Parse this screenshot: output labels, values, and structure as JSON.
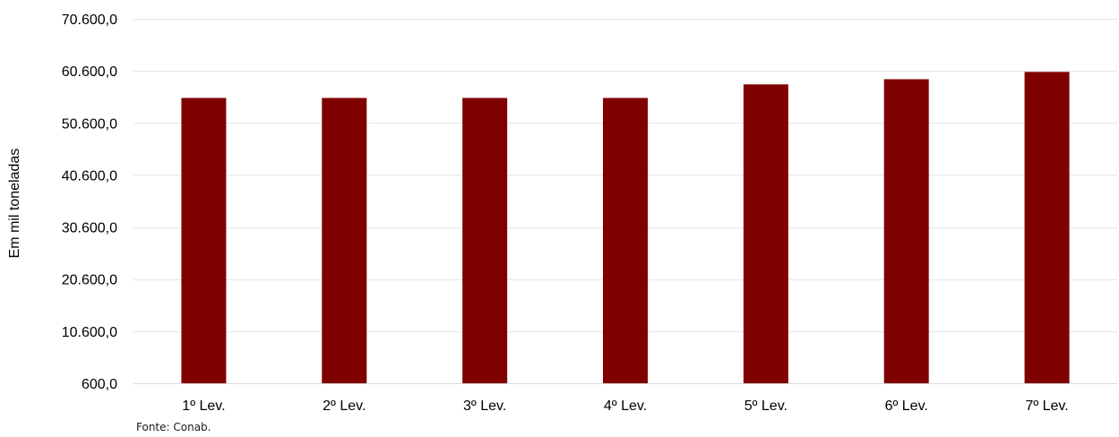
{
  "chart_data": {
    "type": "bar",
    "categories": [
      "1º Lev.",
      "2º Lev.",
      "3º Lev.",
      "4º Lev.",
      "5º Lev.",
      "6º Lev.",
      "7º Lev."
    ],
    "values": [
      55400,
      55400,
      55400,
      55400,
      58000,
      59000,
      60400
    ],
    "ylabel": "Em mil toneladas",
    "xlabel": "",
    "ylim": [
      600,
      70600
    ],
    "yticks": [
      600,
      10600,
      20600,
      30600,
      40600,
      50600,
      60600,
      70600
    ],
    "ytick_labels": [
      "600,0",
      "10.600,0",
      "20.600,0",
      "30.600,0",
      "40.600,0",
      "50.600,0",
      "60.600,0",
      "70.600,0"
    ],
    "grid": true,
    "legend": "none",
    "bar_color": "#800000",
    "grid_color": "#e6e6e6"
  },
  "source": "Fonte: Conab."
}
